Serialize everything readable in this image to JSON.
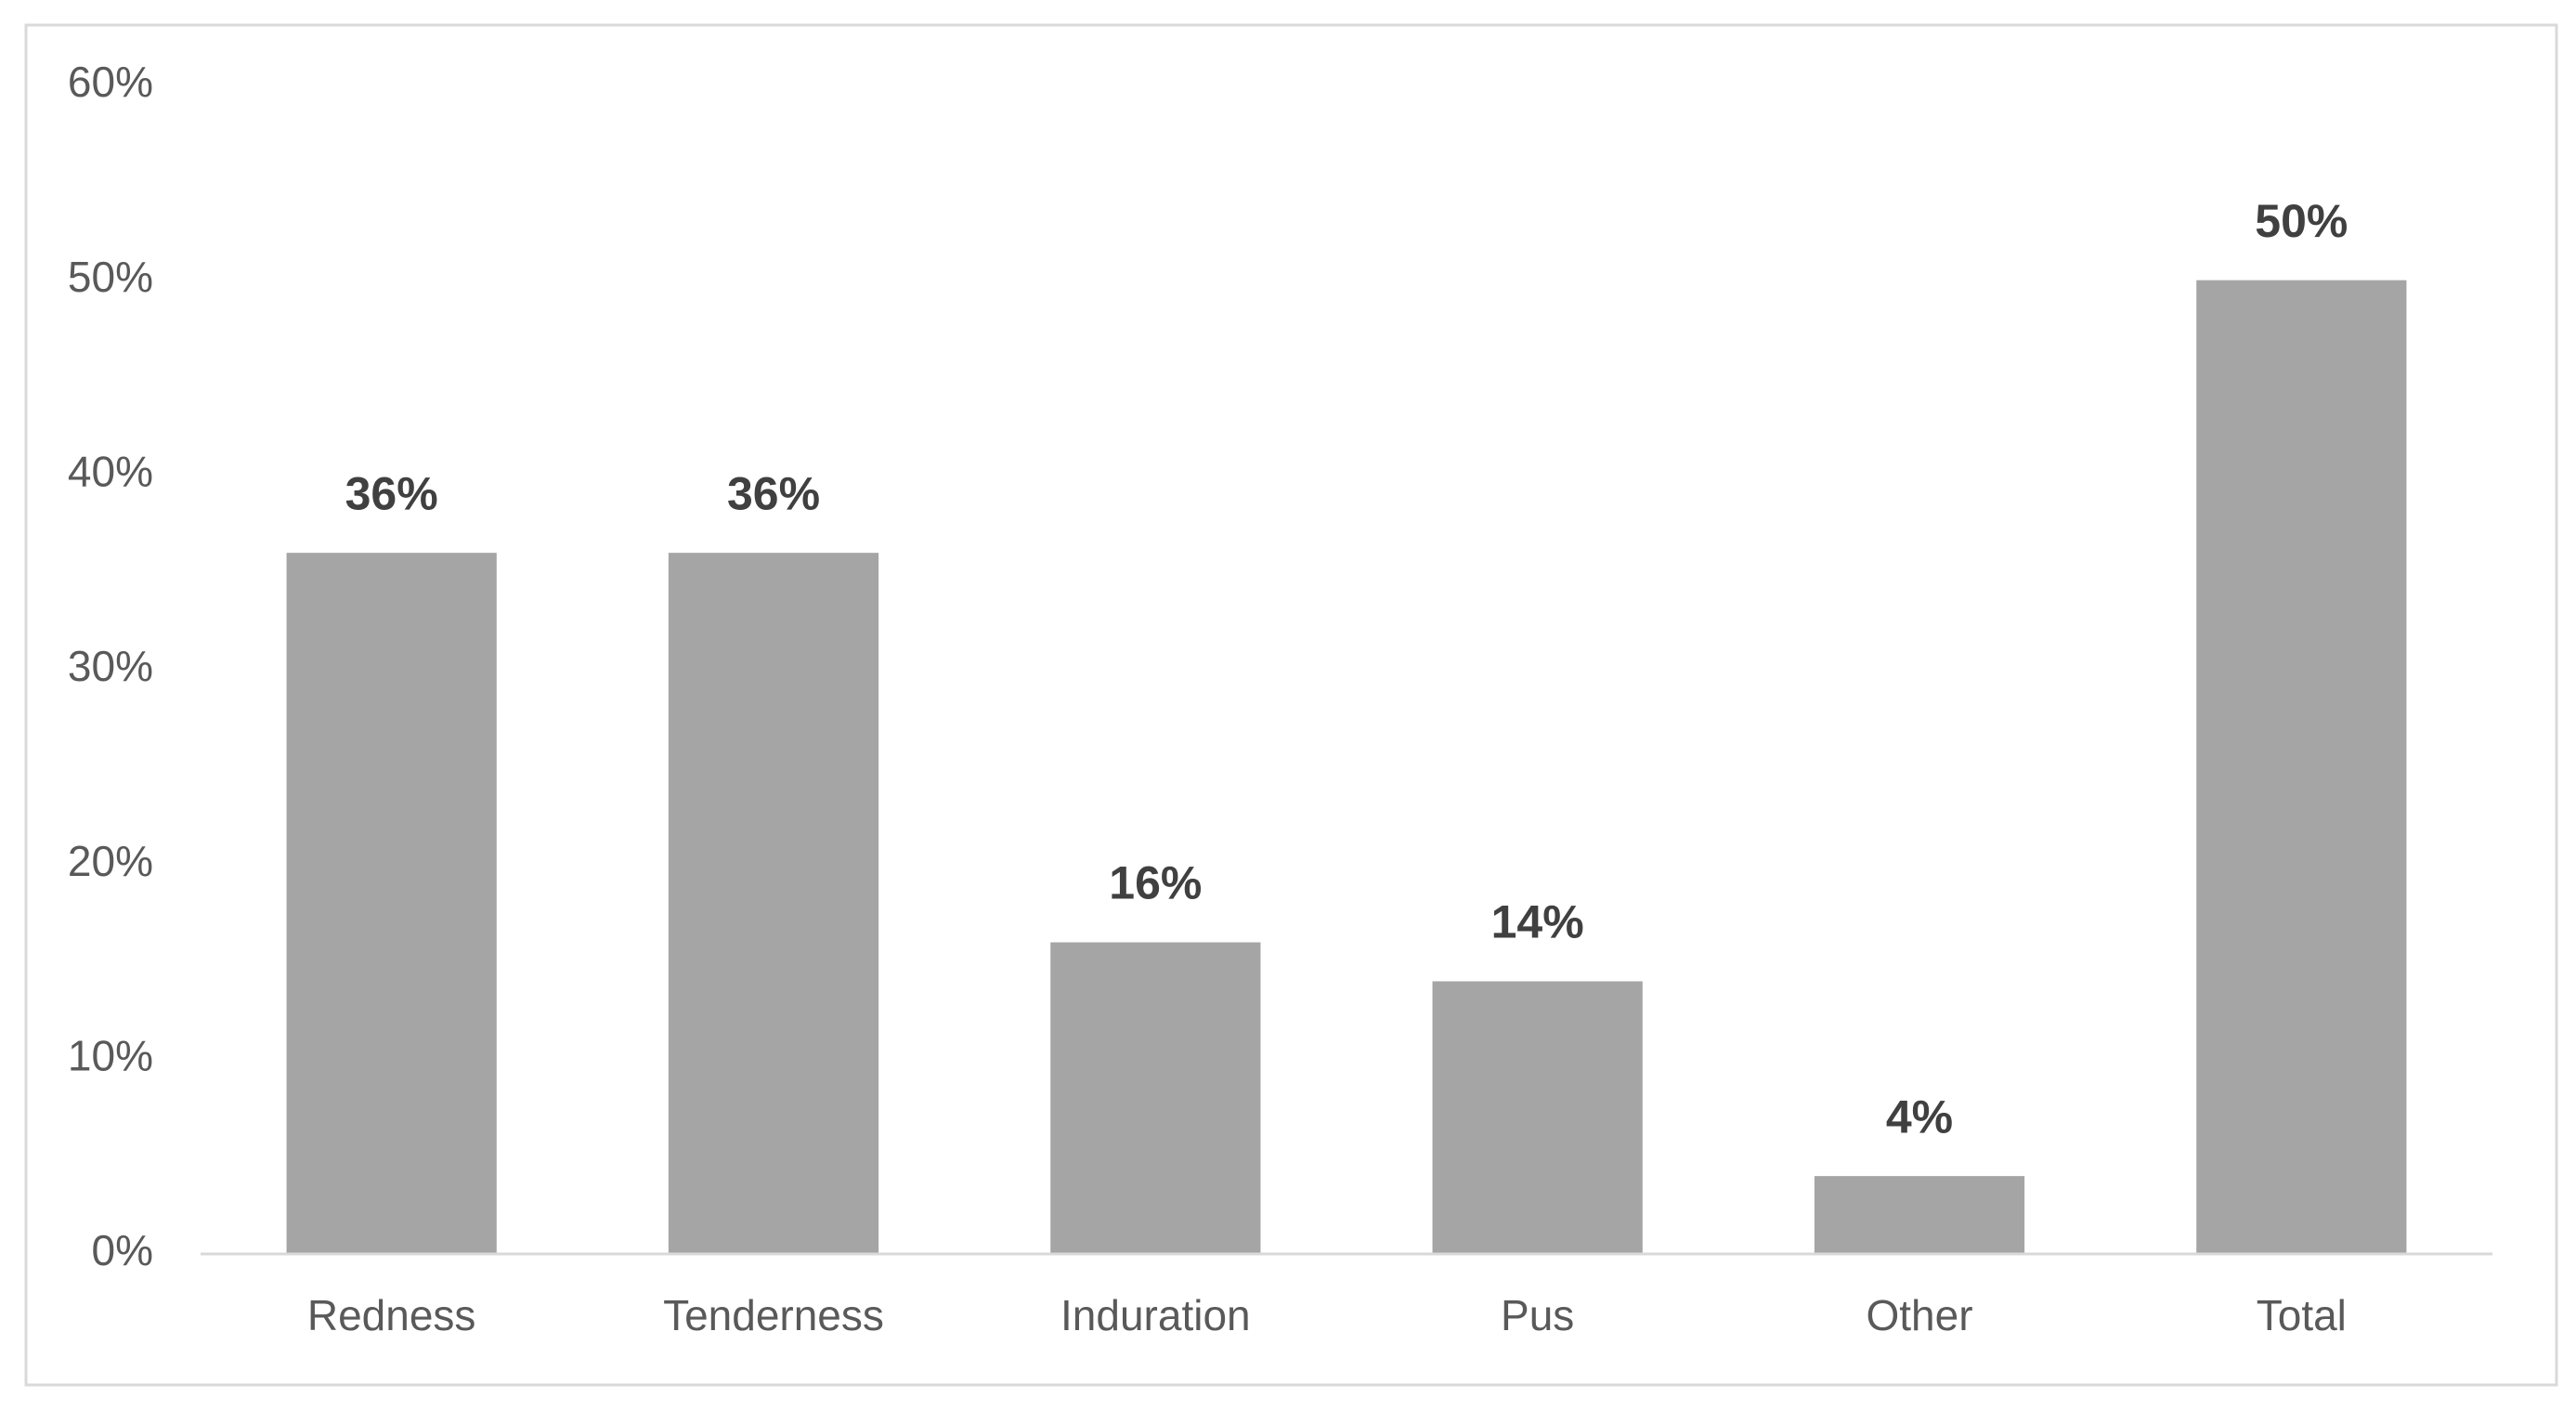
{
  "chart_data": {
    "type": "bar",
    "categories": [
      "Redness",
      "Tenderness",
      "Induration",
      "Pus",
      "Other",
      "Total"
    ],
    "values": [
      36,
      36,
      16,
      14,
      4,
      50
    ],
    "value_labels": [
      "36%",
      "36%",
      "16%",
      "14%",
      "4%",
      "50%"
    ],
    "color": "#a5a5a5",
    "ylim": [
      0,
      60
    ],
    "yticks": [
      {
        "value": 0,
        "label": "0%"
      },
      {
        "value": 10,
        "label": "10%"
      },
      {
        "value": 20,
        "label": "20%"
      },
      {
        "value": 30,
        "label": "30%"
      },
      {
        "value": 40,
        "label": "40%"
      },
      {
        "value": 50,
        "label": "50%"
      },
      {
        "value": 60,
        "label": "60%"
      }
    ],
    "grid": false
  }
}
